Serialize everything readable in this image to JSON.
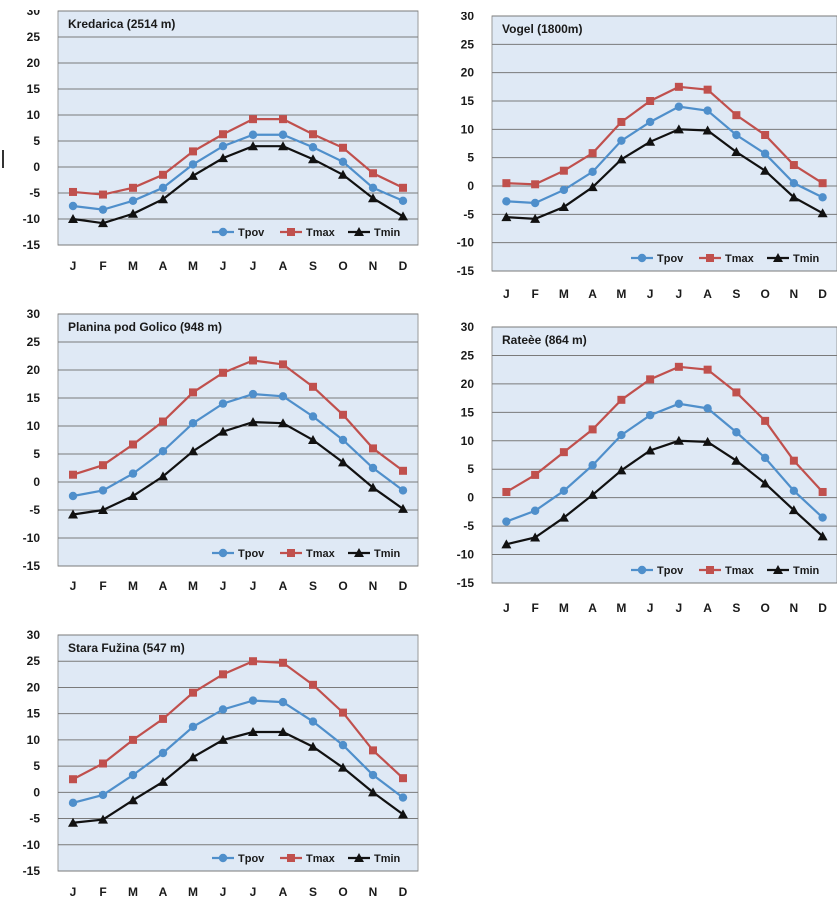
{
  "chart_data": [
    {
      "type": "line",
      "title": "Kredarica (2514 m)",
      "categories": [
        "J",
        "F",
        "M",
        "A",
        "M",
        "J",
        "J",
        "A",
        "S",
        "O",
        "N",
        "D"
      ],
      "ylim": [
        -15,
        30
      ],
      "yticks": [
        "30",
        "25",
        "20",
        "15",
        "10",
        "5",
        "0",
        "-5",
        "-10",
        "-15"
      ],
      "grid": true,
      "legend": "bottom-right",
      "series": [
        {
          "name": "Tpov",
          "color": "#4f8fcb",
          "marker": "circle",
          "values": [
            -7.5,
            -8.2,
            -6.5,
            -4.0,
            0.5,
            4.0,
            6.2,
            6.2,
            3.8,
            1.0,
            -4.0,
            -6.5
          ]
        },
        {
          "name": "Tmax",
          "color": "#c0504d",
          "marker": "square",
          "values": [
            -4.8,
            -5.3,
            -4.0,
            -1.5,
            3.0,
            6.3,
            9.2,
            9.2,
            6.3,
            3.7,
            -1.2,
            -4.0
          ]
        },
        {
          "name": "Tmin",
          "color": "#111111",
          "marker": "triangle",
          "values": [
            -10.0,
            -10.8,
            -9.0,
            -6.2,
            -1.7,
            1.7,
            4.0,
            4.0,
            1.5,
            -1.5,
            -6.0,
            -9.5
          ]
        }
      ]
    },
    {
      "type": "line",
      "title": "Vogel (1800m)",
      "categories": [
        "J",
        "F",
        "M",
        "A",
        "M",
        "J",
        "J",
        "A",
        "S",
        "O",
        "N",
        "D"
      ],
      "ylim": [
        -15,
        30
      ],
      "yticks": [
        "30",
        "25",
        "20",
        "15",
        "10",
        "5",
        "0",
        "-5",
        "-10",
        "-15"
      ],
      "grid": true,
      "legend": "bottom-right",
      "series": [
        {
          "name": "Tpov",
          "color": "#4f8fcb",
          "marker": "circle",
          "values": [
            -2.7,
            -3.0,
            -0.7,
            2.5,
            8.0,
            11.3,
            14.0,
            13.3,
            9.0,
            5.7,
            0.5,
            -2.0
          ]
        },
        {
          "name": "Tmax",
          "color": "#c0504d",
          "marker": "square",
          "values": [
            0.5,
            0.3,
            2.7,
            5.8,
            11.3,
            15.0,
            17.5,
            17.0,
            12.5,
            9.0,
            3.7,
            0.5
          ]
        },
        {
          "name": "Tmin",
          "color": "#111111",
          "marker": "triangle",
          "values": [
            -5.5,
            -5.8,
            -3.7,
            -0.2,
            4.7,
            7.8,
            10.0,
            9.8,
            6.0,
            2.7,
            -2.0,
            -4.8
          ]
        }
      ]
    },
    {
      "type": "line",
      "title": "Planina pod Golico (948 m)",
      "categories": [
        "J",
        "F",
        "M",
        "A",
        "M",
        "J",
        "J",
        "A",
        "S",
        "O",
        "N",
        "D"
      ],
      "ylim": [
        -15,
        30
      ],
      "yticks": [
        "30",
        "25",
        "20",
        "15",
        "10",
        "5",
        "0",
        "-5",
        "-10",
        "-15"
      ],
      "grid": true,
      "legend": "bottom-right",
      "series": [
        {
          "name": "Tpov",
          "color": "#4f8fcb",
          "marker": "circle",
          "values": [
            -2.5,
            -1.5,
            1.5,
            5.5,
            10.5,
            14.0,
            15.7,
            15.3,
            11.7,
            7.5,
            2.5,
            -1.5
          ]
        },
        {
          "name": "Tmax",
          "color": "#c0504d",
          "marker": "square",
          "values": [
            1.3,
            3.0,
            6.7,
            10.8,
            16.0,
            19.5,
            21.7,
            21.0,
            17.0,
            12.0,
            6.0,
            2.0
          ]
        },
        {
          "name": "Tmin",
          "color": "#111111",
          "marker": "triangle",
          "values": [
            -5.8,
            -5.0,
            -2.5,
            1.0,
            5.5,
            9.0,
            10.7,
            10.5,
            7.5,
            3.5,
            -1.0,
            -4.8
          ]
        }
      ]
    },
    {
      "type": "line",
      "title": "Rateèe (864 m)",
      "categories": [
        "J",
        "F",
        "M",
        "A",
        "M",
        "J",
        "J",
        "A",
        "S",
        "O",
        "N",
        "D"
      ],
      "ylim": [
        -15,
        30
      ],
      "yticks": [
        "30",
        "25",
        "20",
        "15",
        "10",
        "5",
        "0",
        "-5",
        "-10",
        "-15"
      ],
      "grid": true,
      "legend": "bottom-right",
      "series": [
        {
          "name": "Tpov",
          "color": "#4f8fcb",
          "marker": "circle",
          "values": [
            -4.2,
            -2.3,
            1.2,
            5.7,
            11.0,
            14.5,
            16.5,
            15.7,
            11.5,
            7.0,
            1.2,
            -3.5
          ]
        },
        {
          "name": "Tmax",
          "color": "#c0504d",
          "marker": "square",
          "values": [
            1.0,
            4.0,
            8.0,
            12.0,
            17.2,
            20.8,
            23.0,
            22.5,
            18.5,
            13.5,
            6.5,
            1.0
          ]
        },
        {
          "name": "Tmin",
          "color": "#111111",
          "marker": "triangle",
          "values": [
            -8.2,
            -7.0,
            -3.5,
            0.5,
            4.8,
            8.3,
            10.0,
            9.8,
            6.5,
            2.5,
            -2.2,
            -6.8
          ]
        }
      ]
    },
    {
      "type": "line",
      "title": "Stara Fužina (547 m)",
      "categories": [
        "J",
        "F",
        "M",
        "A",
        "M",
        "J",
        "J",
        "A",
        "S",
        "O",
        "N",
        "D"
      ],
      "ylim": [
        -15,
        30
      ],
      "yticks": [
        "30",
        "25",
        "20",
        "15",
        "10",
        "5",
        "0",
        "-5",
        "-10",
        "-15"
      ],
      "grid": true,
      "legend": "bottom-right",
      "series": [
        {
          "name": "Tpov",
          "color": "#4f8fcb",
          "marker": "circle",
          "values": [
            -2.0,
            -0.5,
            3.3,
            7.5,
            12.5,
            15.8,
            17.5,
            17.2,
            13.5,
            9.0,
            3.3,
            -1.0
          ]
        },
        {
          "name": "Tmax",
          "color": "#c0504d",
          "marker": "square",
          "values": [
            2.5,
            5.5,
            10.0,
            14.0,
            19.0,
            22.5,
            25.0,
            24.7,
            20.5,
            15.2,
            8.0,
            2.7
          ]
        },
        {
          "name": "Tmin",
          "color": "#111111",
          "marker": "triangle",
          "values": [
            -5.8,
            -5.2,
            -1.5,
            2.0,
            6.7,
            10.0,
            11.5,
            11.5,
            8.7,
            4.7,
            0.0,
            -4.2
          ]
        }
      ]
    }
  ]
}
